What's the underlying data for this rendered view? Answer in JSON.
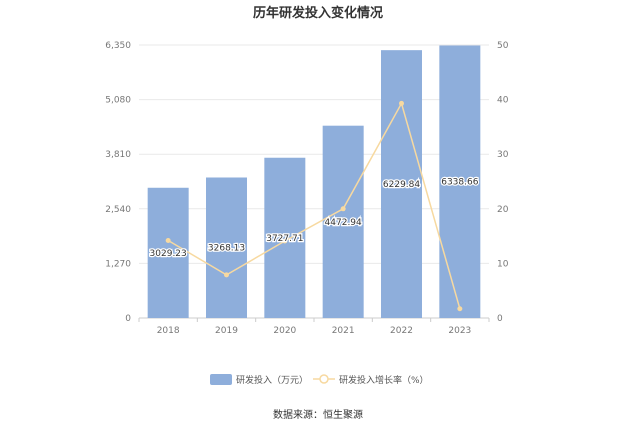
{
  "chart_data": {
    "type": "bar",
    "title": "历年研发投入变化情况",
    "categories": [
      "2018",
      "2019",
      "2020",
      "2021",
      "2022",
      "2023"
    ],
    "series": [
      {
        "name": "研发投入（万元）",
        "type": "bar",
        "axis": "left",
        "color": "#8eaedb",
        "values": [
          3029.23,
          3268.13,
          3727.71,
          4472.94,
          6229.84,
          6338.66
        ],
        "labels": [
          "3029.23",
          "3268.13",
          "3727.71",
          "4472.94",
          "6229.84",
          "6338.66"
        ]
      },
      {
        "name": "研发投入增长率（%）",
        "type": "line",
        "axis": "right",
        "color": "#f7d9a0",
        "values": [
          14.2,
          7.9,
          14.1,
          20.0,
          39.3,
          1.7
        ]
      }
    ],
    "y_left": {
      "ylim": [
        0,
        6350
      ],
      "ticks": [
        "0",
        "1,270",
        "2,540",
        "3,810",
        "5,080",
        "6,350"
      ]
    },
    "y_right": {
      "ylim": [
        0,
        50
      ],
      "ticks": [
        "0",
        "10",
        "20",
        "30",
        "40",
        "50"
      ]
    },
    "grid": true,
    "legend": "bottom-center",
    "source": "数据来源：恒生聚源"
  }
}
